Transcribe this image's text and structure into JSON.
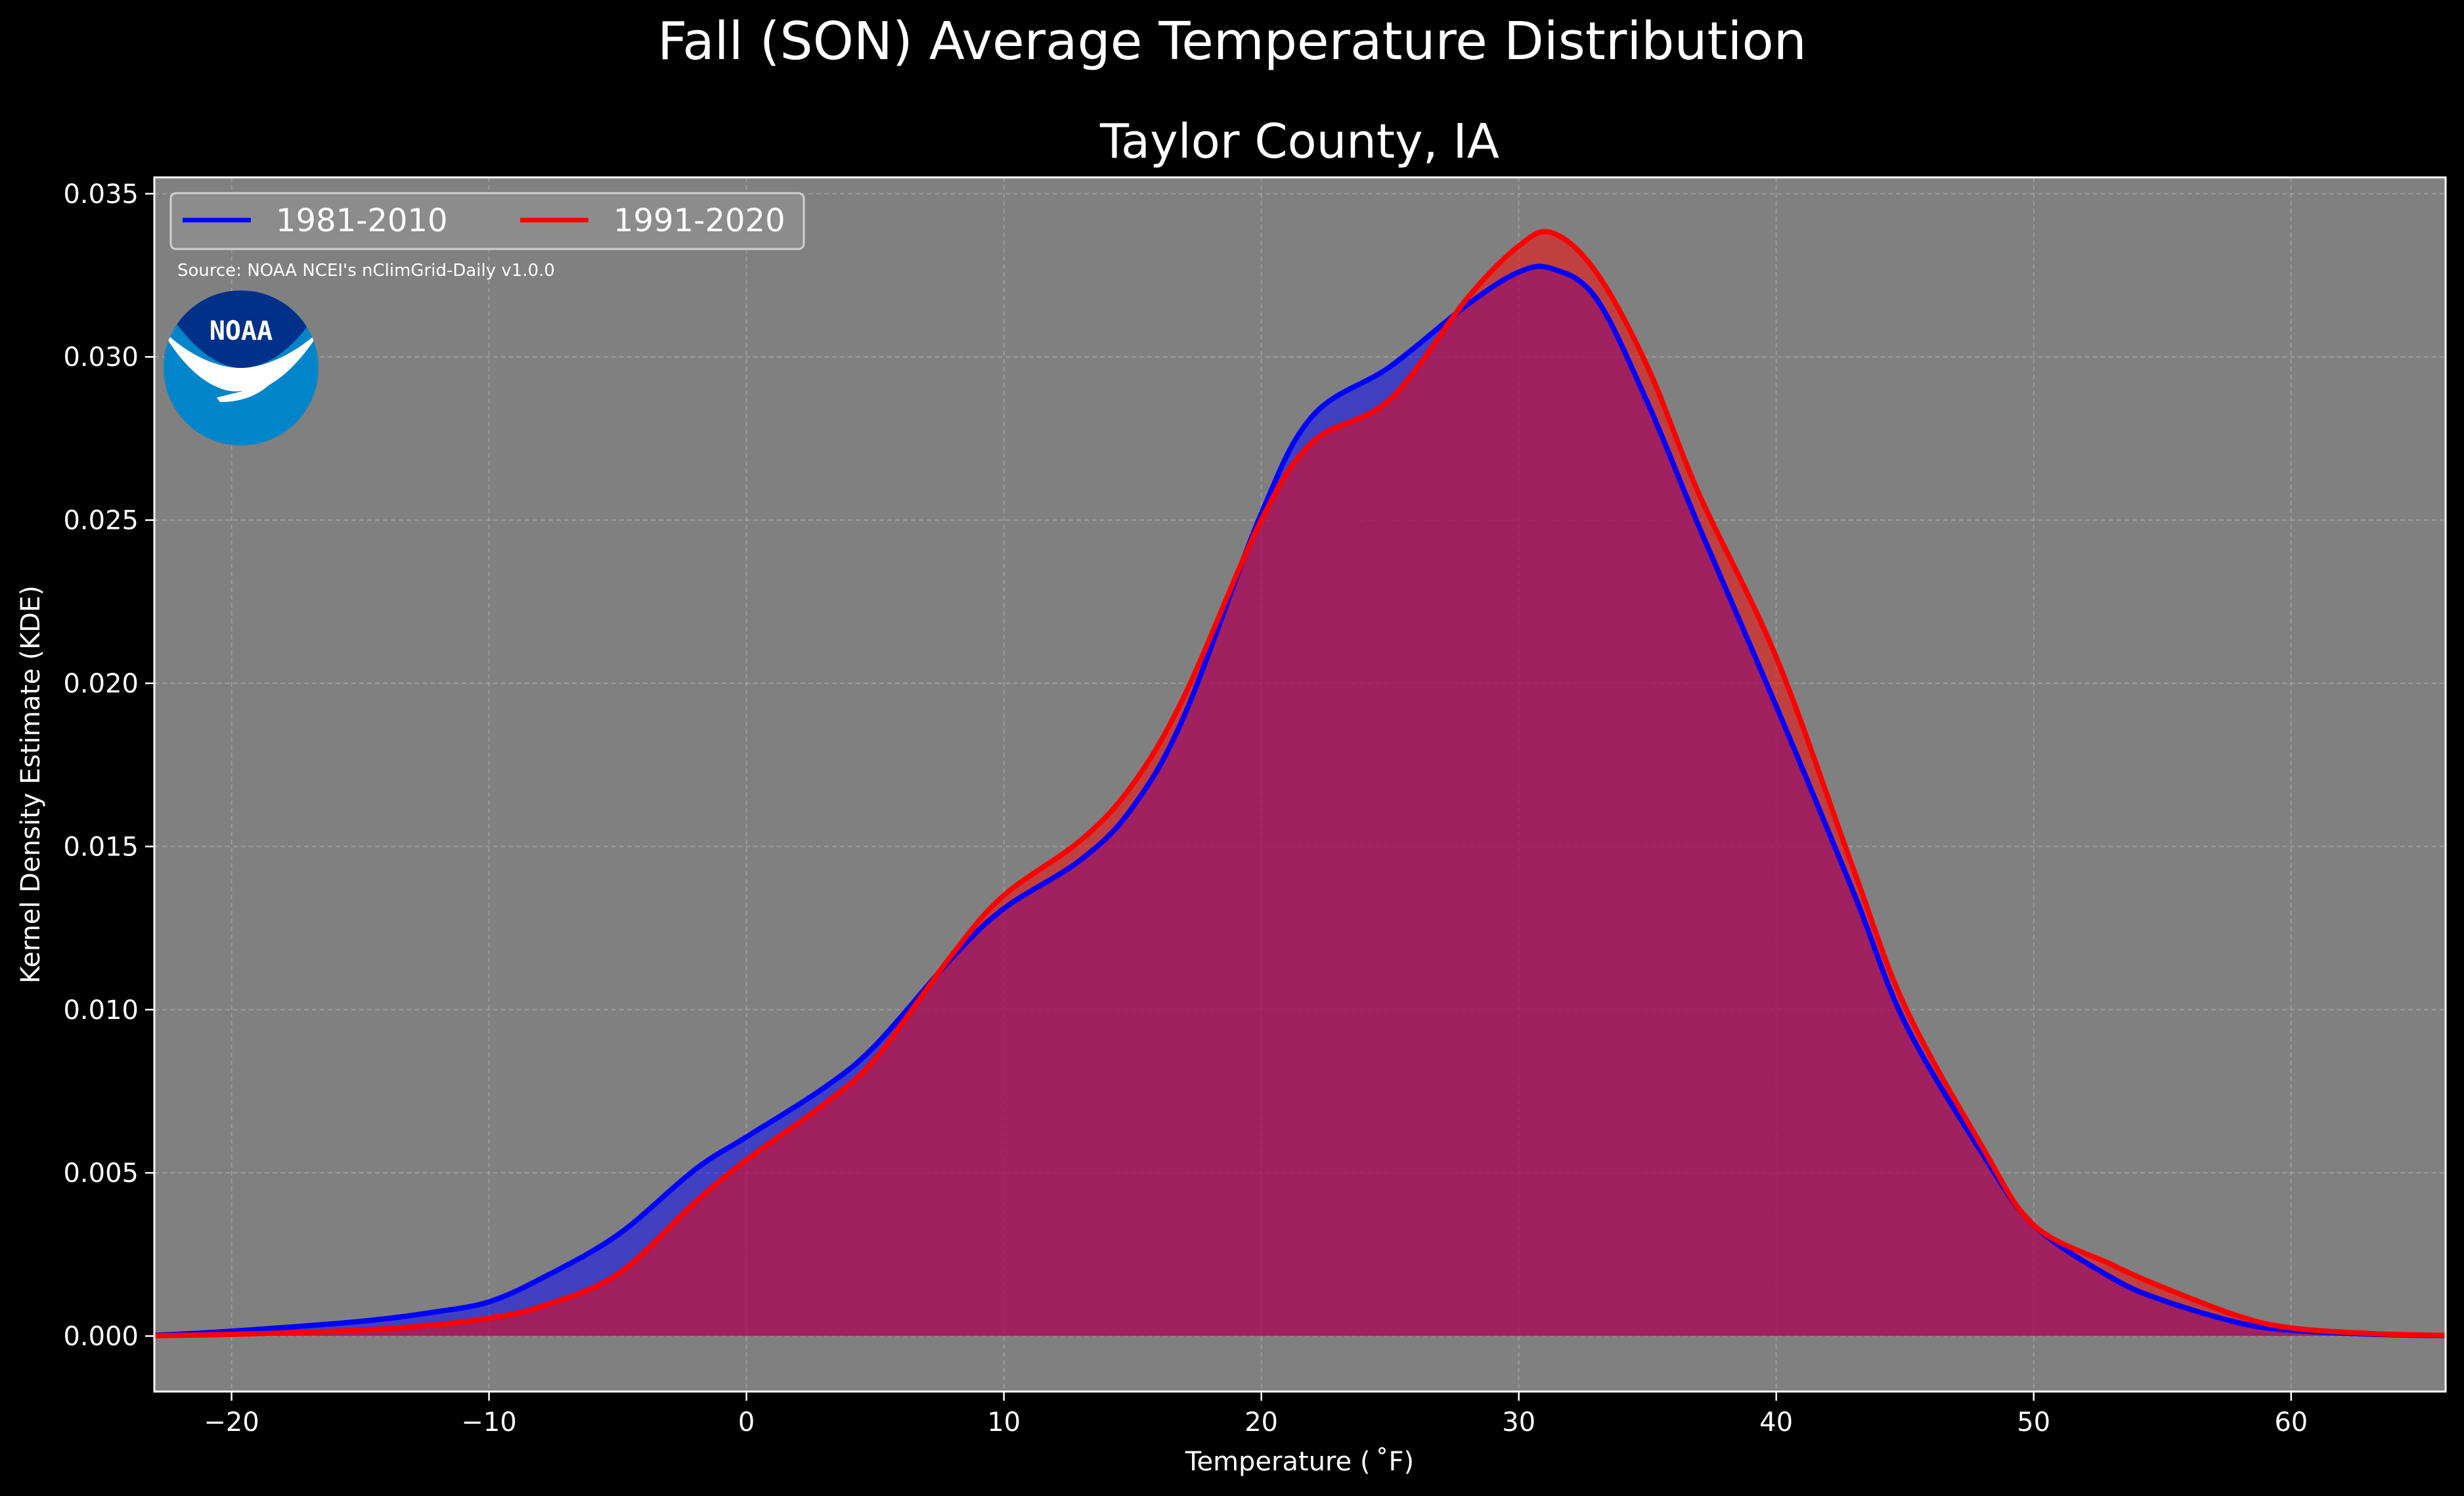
{
  "chart_data": {
    "type": "area",
    "title": "Fall (SON) Average Temperature Distribution",
    "subtitle": "Taylor County, IA",
    "xlabel": "Temperature ($^\\circ$F)",
    "xlabel_display": "Temperature ( ˚F)",
    "ylabel": "Kernel Density Estimate (KDE)",
    "xlim": [
      -23,
      66
    ],
    "ylim": [
      -0.0017,
      0.0355
    ],
    "x_ticks": [
      -20,
      -10,
      0,
      10,
      20,
      30,
      40,
      50,
      60
    ],
    "x_tick_labels": [
      "−20",
      "−10",
      "0",
      "10",
      "20",
      "30",
      "40",
      "50",
      "60"
    ],
    "y_ticks": [
      0.0,
      0.005,
      0.01,
      0.015,
      0.02,
      0.025,
      0.03,
      0.035
    ],
    "y_tick_labels": [
      "0.000",
      "0.005",
      "0.010",
      "0.015",
      "0.020",
      "0.025",
      "0.030",
      "0.035"
    ],
    "grid": true,
    "legend": {
      "placement": "top-left",
      "columns": 2
    },
    "annotation": "Source: NOAA NCEI's nClimGrid-Daily v1.0.0",
    "logo_text": "NOAA",
    "background_color": "#000000",
    "plot_background_color": "#808080",
    "series": [
      {
        "name": "1981-2010",
        "color": "#0000ff",
        "fill_color": "rgba(0,0,255,0.5)",
        "x": [
          -23,
          -20,
          -15,
          -12,
          -10,
          -8,
          -5,
          -2,
          0,
          3,
          5,
          8,
          10,
          13,
          15,
          17,
          20,
          22,
          25,
          28,
          30,
          31.3,
          33,
          35,
          37,
          40,
          43,
          45,
          48,
          50,
          53,
          55,
          58,
          60,
          63,
          66
        ],
        "y": [
          2e-05,
          0.00015,
          0.00045,
          0.00075,
          0.00105,
          0.00175,
          0.0031,
          0.0051,
          0.0061,
          0.0076,
          0.0089,
          0.0116,
          0.0131,
          0.0146,
          0.0162,
          0.019,
          0.0252,
          0.0282,
          0.0297,
          0.0316,
          0.0326,
          0.0327,
          0.0318,
          0.0286,
          0.0248,
          0.0193,
          0.0136,
          0.0096,
          0.0056,
          0.0034,
          0.0018,
          0.0011,
          0.0004,
          0.00018,
          6e-05,
          1e-05
        ]
      },
      {
        "name": "1991-2020",
        "color": "#ff0000",
        "fill_color": "rgba(255,0,0,0.5)",
        "x": [
          -23,
          -20,
          -15,
          -12,
          -10,
          -8,
          -5,
          -2,
          0,
          3,
          5,
          8,
          10,
          13,
          15,
          17,
          20,
          22,
          25,
          28,
          30,
          31.3,
          33,
          35,
          37,
          40,
          43,
          45,
          48,
          50,
          53,
          55,
          58,
          60,
          63,
          66
        ],
        "y": [
          1e-05,
          5e-05,
          0.00018,
          0.00035,
          0.00055,
          0.0009,
          0.0019,
          0.0041,
          0.0054,
          0.0071,
          0.0085,
          0.0117,
          0.0135,
          0.0152,
          0.0169,
          0.0196,
          0.025,
          0.0274,
          0.0287,
          0.0318,
          0.0334,
          0.0338,
          0.0326,
          0.0297,
          0.0258,
          0.0208,
          0.0143,
          0.0101,
          0.0058,
          0.0034,
          0.0022,
          0.0015,
          0.0006,
          0.00025,
          8e-05,
          2e-05
        ]
      }
    ]
  }
}
